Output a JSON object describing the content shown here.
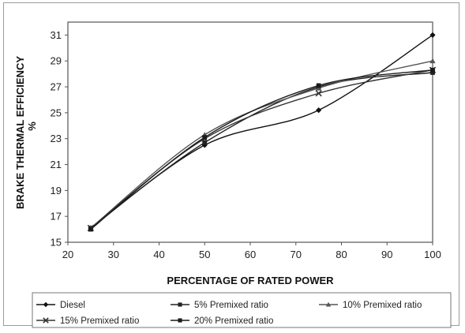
{
  "chart_data": {
    "type": "line",
    "title": "",
    "xlabel": "PERCENTAGE OF RATED POWER",
    "ylabel": "BRAKE THERMAL EFFICIENCY",
    "ylabel_unit": "%",
    "xlim": [
      20,
      100
    ],
    "ylim": [
      15,
      32
    ],
    "xticks": [
      20,
      30,
      40,
      50,
      60,
      70,
      80,
      90,
      100
    ],
    "yticks": [
      15,
      17,
      19,
      21,
      23,
      25,
      27,
      29,
      31
    ],
    "grid": false,
    "legend_position": "bottom",
    "x": [
      25,
      50,
      75,
      100
    ],
    "series": [
      {
        "name": "Diesel",
        "values": [
          16.1,
          22.5,
          25.2,
          31.0
        ],
        "color": "#111111",
        "marker": "diamond"
      },
      {
        "name": "5% Premixed ratio",
        "values": [
          16.1,
          22.7,
          27.0,
          28.1
        ],
        "color": "#222222",
        "marker": "square"
      },
      {
        "name": "10%  Premixed ratio",
        "values": [
          16.1,
          23.3,
          26.9,
          29.0
        ],
        "color": "#555555",
        "marker": "triangle"
      },
      {
        "name": "15%  Premixed ratio",
        "values": [
          16.1,
          23.0,
          26.5,
          28.3
        ],
        "color": "#333333",
        "marker": "x"
      },
      {
        "name": "20%  Premixed ratio",
        "values": [
          16.0,
          23.1,
          27.1,
          28.3
        ],
        "color": "#1a1a1a",
        "marker": "square"
      }
    ]
  }
}
